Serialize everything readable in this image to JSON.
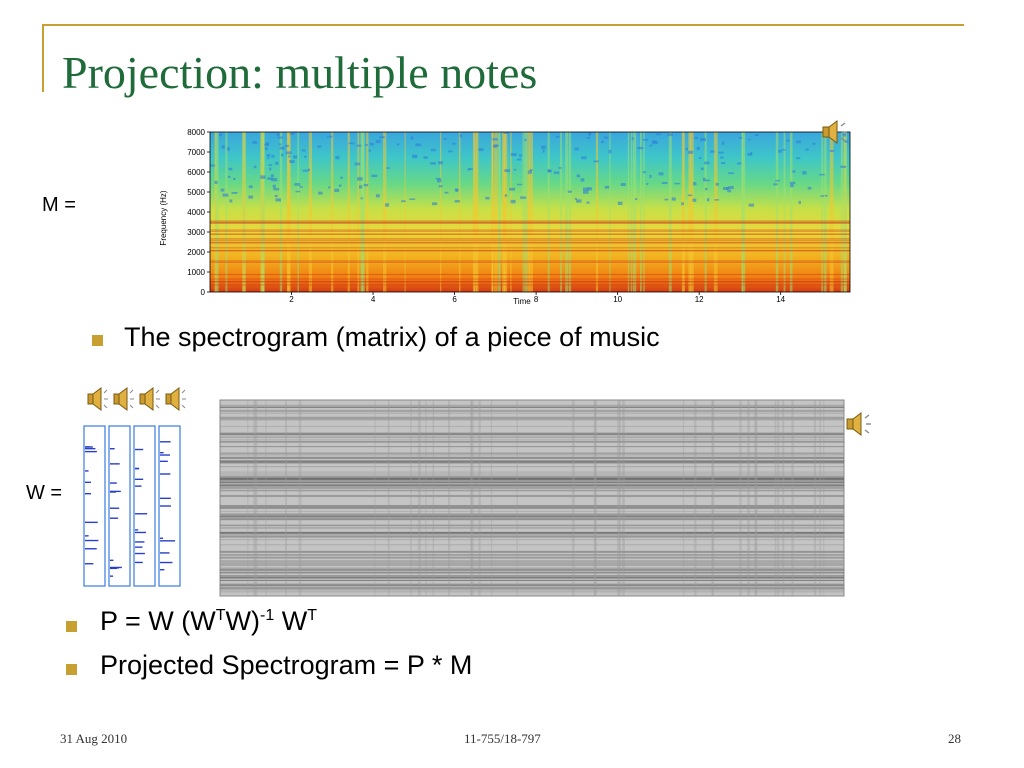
{
  "slide": {
    "title": "Projection: multiple notes",
    "m_label": "M =",
    "w_label": "W =",
    "bullet1": "The spectrogram (matrix) of a piece of music",
    "bullet2": {
      "prefix": "P = W (W",
      "sup1": "T",
      "mid": "W)",
      "sup2": "-1",
      "w": " W",
      "sup3": "T"
    },
    "bullet3": "Projected Spectrogram = P * M",
    "footer_left": "31 Aug 2010",
    "footer_center": "11-755/18-797",
    "footer_right": "28",
    "accent_color": "#c8a032",
    "title_color": "#1f6b3a"
  },
  "spectrogram": {
    "ylabel": "Frequency (Hz)",
    "xlabel": "Time",
    "y_ticks": [
      "0",
      "1000",
      "2000",
      "3000",
      "4000",
      "5000",
      "6000",
      "7000",
      "8000"
    ],
    "x_ticks": [
      "2",
      "4",
      "6",
      "8",
      "10",
      "12",
      "14"
    ],
    "colormap": "jet"
  },
  "icons": {
    "speaker": "speaker-icon"
  }
}
